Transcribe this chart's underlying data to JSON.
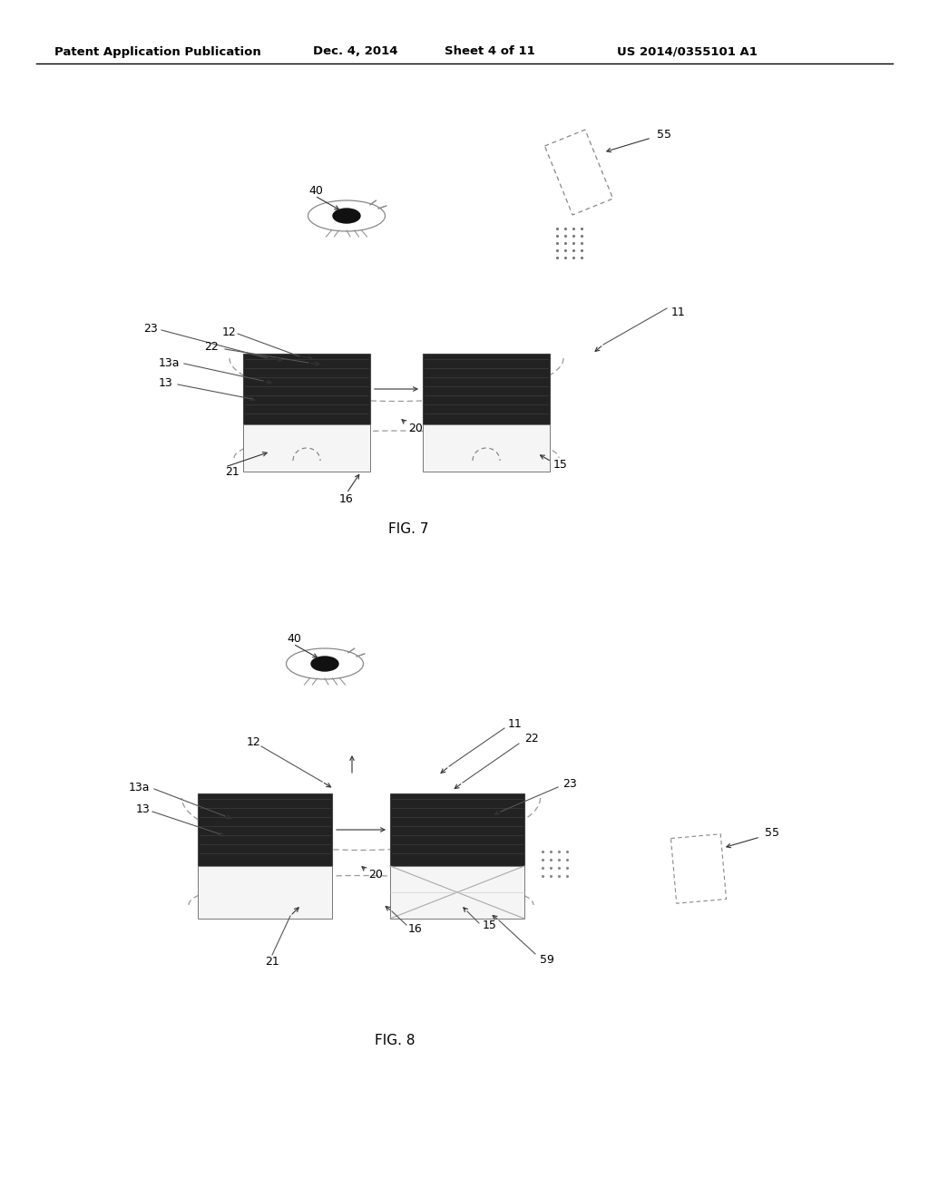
{
  "bg_color": "#ffffff",
  "header_text": "Patent Application Publication",
  "header_date": "Dec. 4, 2014",
  "header_sheet": "Sheet 4 of 11",
  "header_patent": "US 2014/0355101 A1",
  "fig7_label": "FIG. 7",
  "fig8_label": "FIG. 8"
}
